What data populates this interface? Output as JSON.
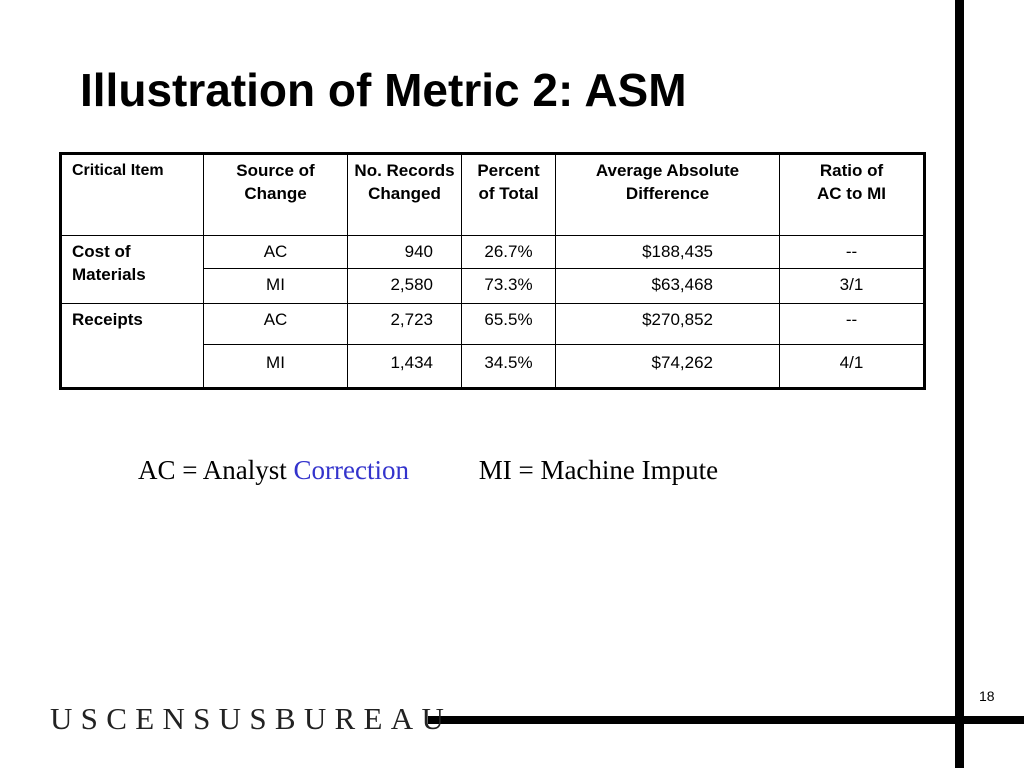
{
  "slide": {
    "title": "Illustration of Metric 2: ASM",
    "page_number": "18"
  },
  "table": {
    "headers": {
      "critical_item": "Critical Item",
      "source_of_change": "Source of Change",
      "no_records_changed": "No. Records Changed",
      "percent_of_total": "Percent of Total",
      "average_absolute_difference": "Average Absolute Difference",
      "ratio_line1": "Ratio of",
      "ratio_line2": "AC to MI"
    },
    "groups": [
      {
        "item": "Cost of Materials",
        "rows": [
          {
            "source": "AC",
            "records": "940",
            "percent": "26.7%",
            "avg_diff": "$188,435",
            "ratio": "--"
          },
          {
            "source": "MI",
            "records": "2,580",
            "percent": "73.3%",
            "avg_diff": "$63,468",
            "ratio": "3/1"
          }
        ]
      },
      {
        "item": "Receipts",
        "rows": [
          {
            "source": "AC",
            "records": "2,723",
            "percent": "65.5%",
            "avg_diff": "$270,852",
            "ratio": "--"
          },
          {
            "source": "MI",
            "records": "1,434",
            "percent": "34.5%",
            "avg_diff": "$74,262",
            "ratio": "4/1"
          }
        ]
      }
    ]
  },
  "legend": {
    "ac_prefix": "AC = Analyst",
    "ac_highlight": "Correction",
    "mi_text": "MI = Machine Impute",
    "highlight_color": "#3333cc"
  },
  "footer": {
    "logo_text": "USCENSUSBUREAU"
  }
}
